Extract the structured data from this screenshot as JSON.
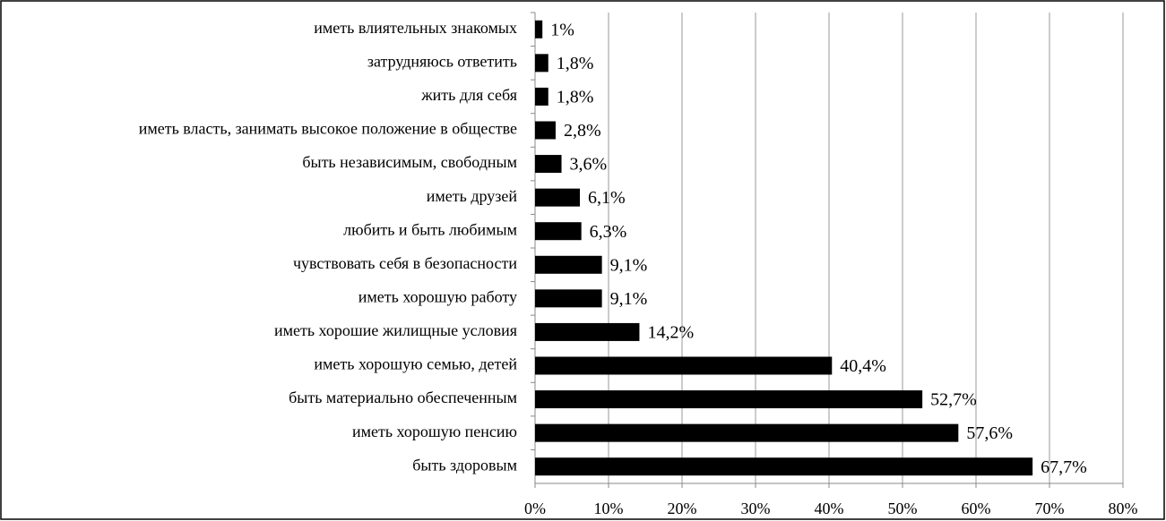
{
  "chart_data": {
    "type": "hbar",
    "categories": [
      "иметь влиятельных знакомых",
      "затрудняюсь ответить",
      "жить для себя",
      "иметь власть, занимать высокое положение в обществе",
      "быть независимым, свободным",
      "иметь друзей",
      "любить и быть любимым",
      "чувствовать себя в безопасности",
      "иметь хорошую работу",
      "иметь хорошие жилищные условия",
      "иметь хорошую семью, детей",
      "быть материально обеспеченным",
      "иметь хорошую пенсию",
      "быть здоровым"
    ],
    "values": [
      1,
      1.8,
      1.8,
      2.8,
      3.6,
      6.1,
      6.3,
      9.1,
      9.1,
      14.2,
      40.4,
      52.7,
      57.6,
      67.7
    ],
    "value_labels": [
      "1%",
      "1,8%",
      "1,8%",
      "2,8%",
      "3,6%",
      "6,1%",
      "6,3%",
      "9,1%",
      "9,1%",
      "14,2%",
      "40,4%",
      "52,7%",
      "57,6%",
      "67,7%"
    ],
    "color": "#000000",
    "xlim": [
      0,
      80
    ],
    "xticks": [
      {
        "value": 0,
        "label": "0%"
      },
      {
        "value": 10,
        "label": "10%"
      },
      {
        "value": 20,
        "label": "20%"
      },
      {
        "value": 30,
        "label": "30%"
      },
      {
        "value": 40,
        "label": "40%"
      },
      {
        "value": 50,
        "label": "50%"
      },
      {
        "value": 60,
        "label": "60%"
      },
      {
        "value": 70,
        "label": "70%"
      },
      {
        "value": 80,
        "label": "80%"
      }
    ],
    "grid": true
  }
}
